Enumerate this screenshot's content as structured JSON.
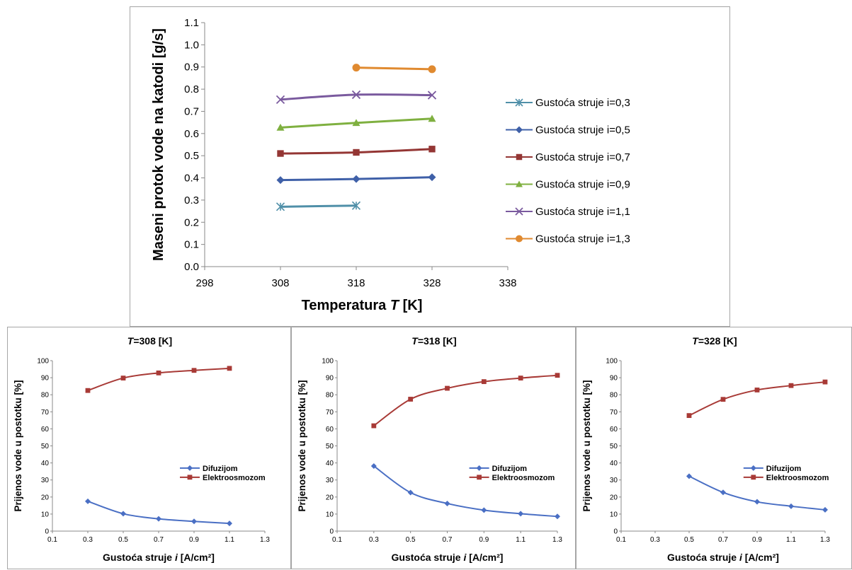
{
  "chart_data": [
    {
      "type": "line",
      "xlabel_main": "Temperatura ",
      "xlabel_var": "T",
      "xlabel_unit": " [K]",
      "ylabel": "Maseni protok vode na katodi [g/s]",
      "xlim": [
        298,
        338
      ],
      "ylim": [
        0.0,
        1.1
      ],
      "x_ticks": [
        "298",
        "308",
        "318",
        "328",
        "338"
      ],
      "y_ticks": [
        "0.0",
        "0.1",
        "0.2",
        "0.3",
        "0.4",
        "0.5",
        "0.6",
        "0.7",
        "0.8",
        "0.9",
        "1.0",
        "1.1"
      ],
      "grid": false,
      "legend_position": "right",
      "series": [
        {
          "name": "Gustoća struje i=0,3",
          "color": "#4f8fa8",
          "marker": "star",
          "x": [
            308,
            318
          ],
          "y": [
            0.27,
            0.275
          ]
        },
        {
          "name": "Gustoća struje i=0,5",
          "color": "#3f60a8",
          "marker": "diamond",
          "x": [
            308,
            318,
            328
          ],
          "y": [
            0.39,
            0.395,
            0.403
          ]
        },
        {
          "name": "Gustoća struje i=0,7",
          "color": "#943634",
          "marker": "square",
          "x": [
            308,
            318,
            328
          ],
          "y": [
            0.51,
            0.515,
            0.53
          ]
        },
        {
          "name": "Gustoća struje i=0,9",
          "color": "#7fb040",
          "marker": "triangle",
          "x": [
            308,
            318,
            328
          ],
          "y": [
            0.627,
            0.648,
            0.667
          ]
        },
        {
          "name": "Gustoća struje i=1,1",
          "color": "#7a5a9e",
          "marker": "x",
          "x": [
            308,
            318,
            328
          ],
          "y": [
            0.753,
            0.775,
            0.773
          ]
        },
        {
          "name": "Gustoća struje i=1,3",
          "color": "#e08a30",
          "marker": "circle",
          "x": [
            318,
            328
          ],
          "y": [
            0.897,
            0.89
          ]
        }
      ]
    },
    {
      "type": "line",
      "title_var": "T",
      "title_rest": "=308 [K]",
      "xlabel_main": "Gustoća struje ",
      "xlabel_var": "i",
      "xlabel_unit": " [A/cm²]",
      "ylabel": "Prijenos vode u postotku [%]",
      "xlim": [
        0.1,
        1.3
      ],
      "ylim": [
        0,
        100
      ],
      "x_ticks": [
        "0.1",
        "0.3",
        "0.5",
        "0.7",
        "0.9",
        "1.1",
        "1.3"
      ],
      "y_ticks": [
        "0",
        "10",
        "20",
        "30",
        "40",
        "50",
        "60",
        "70",
        "80",
        "90",
        "100"
      ],
      "legend_position": "center-right",
      "series": [
        {
          "name": "Difuzijom",
          "color": "#4a6fc4",
          "marker": "diamond",
          "x": [
            0.3,
            0.5,
            0.7,
            0.9,
            1.1
          ],
          "y": [
            17.5,
            10.2,
            7.2,
            5.7,
            4.5
          ]
        },
        {
          "name": "Elektroosmozom",
          "color": "#a83a36",
          "marker": "square",
          "x": [
            0.3,
            0.5,
            0.7,
            0.9,
            1.1
          ],
          "y": [
            82.5,
            89.8,
            92.8,
            94.3,
            95.5
          ]
        }
      ]
    },
    {
      "type": "line",
      "title_var": "T",
      "title_rest": "=318 [K]",
      "xlabel_main": "Gustoća struje ",
      "xlabel_var": "i",
      "xlabel_unit": " [A/cm²]",
      "ylabel": "Prijenos vode u postotku [%]",
      "xlim": [
        0.1,
        1.3
      ],
      "ylim": [
        0,
        100
      ],
      "x_ticks": [
        "0.1",
        "0.3",
        "0.5",
        "0.7",
        "0.9",
        "1.1",
        "1.3"
      ],
      "y_ticks": [
        "0",
        "10",
        "20",
        "30",
        "40",
        "50",
        "60",
        "70",
        "80",
        "90",
        "100"
      ],
      "legend_position": "center-right",
      "series": [
        {
          "name": "Difuzijom",
          "color": "#4a6fc4",
          "marker": "diamond",
          "x": [
            0.3,
            0.5,
            0.7,
            0.9,
            1.1,
            1.3
          ],
          "y": [
            38.2,
            22.6,
            16.2,
            12.3,
            10.2,
            8.6
          ]
        },
        {
          "name": "Elektroosmozom",
          "color": "#a83a36",
          "marker": "square",
          "x": [
            0.3,
            0.5,
            0.7,
            0.9,
            1.1,
            1.3
          ],
          "y": [
            61.8,
            77.4,
            83.8,
            87.7,
            89.8,
            91.4
          ]
        }
      ]
    },
    {
      "type": "line",
      "title_var": "T",
      "title_rest": "=328 [K]",
      "xlabel_main": "Gustoća struje ",
      "xlabel_var": "i",
      "xlabel_unit": " [A/cm²]",
      "ylabel": "Prijenos vode u postotku [%]",
      "xlim": [
        0.1,
        1.3
      ],
      "ylim": [
        0,
        100
      ],
      "x_ticks": [
        "0.1",
        "0.3",
        "0.5",
        "0.7",
        "0.9",
        "1.1",
        "1.3"
      ],
      "y_ticks": [
        "0",
        "10",
        "20",
        "30",
        "40",
        "50",
        "60",
        "70",
        "80",
        "90",
        "100"
      ],
      "legend_position": "center-right",
      "series": [
        {
          "name": "Difuzijom",
          "color": "#4a6fc4",
          "marker": "diamond",
          "x": [
            0.5,
            0.7,
            0.9,
            1.1,
            1.3
          ],
          "y": [
            32.2,
            22.7,
            17.2,
            14.6,
            12.5
          ]
        },
        {
          "name": "Elektroosmozom",
          "color": "#a83a36",
          "marker": "square",
          "x": [
            0.5,
            0.7,
            0.9,
            1.1,
            1.3
          ],
          "y": [
            67.8,
            77.3,
            82.8,
            85.4,
            87.5
          ]
        }
      ]
    }
  ]
}
